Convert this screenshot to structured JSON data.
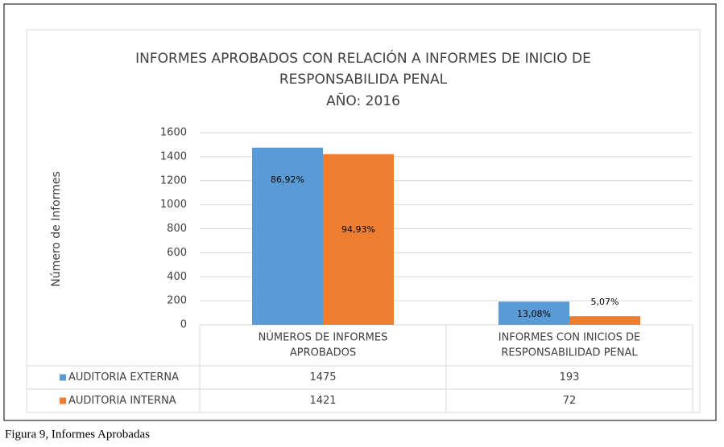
{
  "chart_data": {
    "type": "bar",
    "title": [
      "INFORMES APROBADOS  CON RELACIÓN A INFORMES DE INICIO DE",
      "RESPONSABILIDA PENAL",
      "AÑO: 2016"
    ],
    "y_axis_label": "Número de Informes",
    "categories": [
      [
        "NÚMEROS DE INFORMES",
        "APROBADOS"
      ],
      [
        "INFORMES CON INICIOS DE",
        "RESPONSABILIDAD PENAL"
      ]
    ],
    "series": [
      {
        "name": "AUDITORIA EXTERNA",
        "color": "#5b9bd5",
        "values": [
          1475,
          193
        ],
        "percent_labels": [
          "86,92%",
          "13,08%"
        ]
      },
      {
        "name": "AUDITORIA INTERNA",
        "color": "#ed7d31",
        "values": [
          1421,
          72
        ],
        "percent_labels": [
          "94,93%",
          "5,07%"
        ]
      }
    ],
    "ylim": [
      0,
      1600
    ],
    "yticks": [
      0,
      200,
      400,
      600,
      800,
      1000,
      1200,
      1400,
      1600
    ],
    "grid": true,
    "data_table": true
  },
  "caption": "Figura 9, Informes Aprobadas"
}
